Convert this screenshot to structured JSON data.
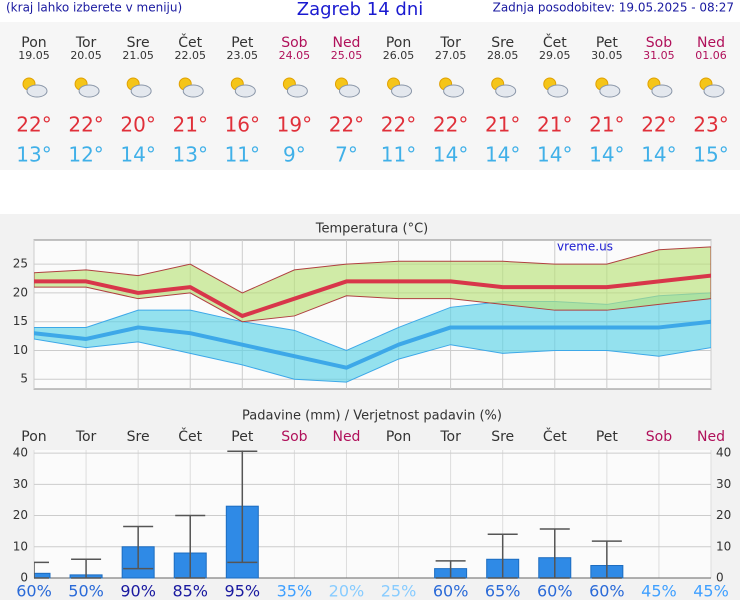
{
  "header": {
    "left": "(kraj lahko izberete v meniju)",
    "title": "Zagreb 14 dni",
    "right": "Zadnja posodobitev: 19.05.2025 - 08:27"
  },
  "days": [
    {
      "day": "Pon",
      "date": "19.05",
      "high": "22°",
      "low": "13°",
      "color": "#333333"
    },
    {
      "day": "Tor",
      "date": "20.05",
      "high": "22°",
      "low": "12°",
      "color": "#333333"
    },
    {
      "day": "Sre",
      "date": "21.05",
      "high": "20°",
      "low": "14°",
      "color": "#333333"
    },
    {
      "day": "Čet",
      "date": "22.05",
      "high": "21°",
      "low": "13°",
      "color": "#333333"
    },
    {
      "day": "Pet",
      "date": "23.05",
      "high": "16°",
      "low": "11°",
      "color": "#333333"
    },
    {
      "day": "Sob",
      "date": "24.05",
      "high": "19°",
      "low": "9°",
      "color": "#b0105a"
    },
    {
      "day": "Ned",
      "date": "25.05",
      "high": "22°",
      "low": "7°",
      "color": "#b0105a"
    },
    {
      "day": "Pon",
      "date": "26.05",
      "high": "22°",
      "low": "11°",
      "color": "#333333"
    },
    {
      "day": "Tor",
      "date": "27.05",
      "high": "22°",
      "low": "14°",
      "color": "#333333"
    },
    {
      "day": "Sre",
      "date": "28.05",
      "high": "21°",
      "low": "14°",
      "color": "#333333"
    },
    {
      "day": "Čet",
      "date": "29.05",
      "high": "21°",
      "low": "14°",
      "color": "#333333"
    },
    {
      "day": "Pet",
      "date": "30.05",
      "high": "21°",
      "low": "14°",
      "color": "#333333"
    },
    {
      "day": "Sob",
      "date": "31.05",
      "high": "22°",
      "low": "14°",
      "color": "#b0105a"
    },
    {
      "day": "Ned",
      "date": "01.06",
      "high": "23°",
      "low": "15°",
      "color": "#b0105a"
    }
  ],
  "chart_data": [
    {
      "type": "line",
      "title": "Temperatura (°C)",
      "annotation": "vreme.us",
      "ylim": [
        3.3,
        29.2
      ],
      "yticks": [
        5,
        10,
        15,
        20,
        25
      ],
      "grid": true,
      "bands": [
        {
          "color": "#5cd2e6",
          "edge": "#3da8e8",
          "upper": [
            14,
            14,
            17,
            17,
            15,
            13.5,
            10,
            14,
            17.5,
            18.5,
            18.5,
            18,
            19.5,
            20
          ],
          "lower": [
            12,
            10.5,
            11.5,
            9.5,
            7.5,
            5,
            4.5,
            8.5,
            11,
            9.5,
            10,
            10,
            9,
            10.5
          ]
        },
        {
          "color": "#b9e27a",
          "edge": "#b04040",
          "upper": [
            23.5,
            24,
            23,
            25,
            20,
            24,
            25,
            25.5,
            25.5,
            25.5,
            25,
            25,
            27.5,
            28
          ],
          "lower": [
            21,
            21,
            19,
            20,
            15,
            16,
            19.5,
            19,
            19,
            18,
            17,
            17,
            18,
            19
          ]
        }
      ],
      "series": [
        {
          "color": "#d8364a",
          "values": [
            22,
            22,
            20,
            21,
            16,
            19,
            22,
            22,
            22,
            21,
            21,
            21,
            22,
            23
          ]
        },
        {
          "color": "#3da8e8",
          "values": [
            13,
            12,
            14,
            13,
            11,
            9,
            7,
            11,
            14,
            14,
            14,
            14,
            14,
            15
          ]
        }
      ]
    },
    {
      "type": "bar",
      "title": "Padavine (mm) / Verjetnost padavin (%)",
      "categories": [
        "Pon",
        "Tor",
        "Sre",
        "Čet",
        "Pet",
        "Sob",
        "Ned",
        "Pon",
        "Tor",
        "Sre",
        "Čet",
        "Pet",
        "Sob",
        "Ned"
      ],
      "category_colors": [
        "#333333",
        "#333333",
        "#333333",
        "#333333",
        "#333333",
        "#b0105a",
        "#b0105a",
        "#333333",
        "#333333",
        "#333333",
        "#333333",
        "#333333",
        "#b0105a",
        "#b0105a"
      ],
      "values": [
        1.5,
        1,
        10,
        8,
        23,
        0,
        0,
        0,
        3,
        6,
        6.5,
        4,
        0,
        0
      ],
      "error_low": [
        0,
        0,
        3,
        0,
        5,
        null,
        null,
        null,
        0,
        0,
        0,
        0,
        null,
        null
      ],
      "error_high": [
        5,
        6,
        16.5,
        20,
        40.6,
        null,
        null,
        null,
        5.5,
        14,
        15.7,
        11.8,
        null,
        null
      ],
      "color": "#2f8ae6",
      "ylim": [
        0,
        41
      ],
      "yticks": [
        0,
        10,
        20,
        30,
        40
      ],
      "y2ticks": [
        0,
        10,
        20,
        30,
        40
      ],
      "probabilities": {
        "values": [
          60,
          50,
          90,
          85,
          95,
          35,
          20,
          25,
          60,
          65,
          60,
          60,
          45,
          45
        ],
        "value_labels": [
          "60%",
          "50%",
          "90%",
          "85%",
          "95%",
          "35%",
          "20%",
          "25%",
          "60%",
          "65%",
          "60%",
          "60%",
          "45%",
          "45%"
        ]
      }
    }
  ]
}
